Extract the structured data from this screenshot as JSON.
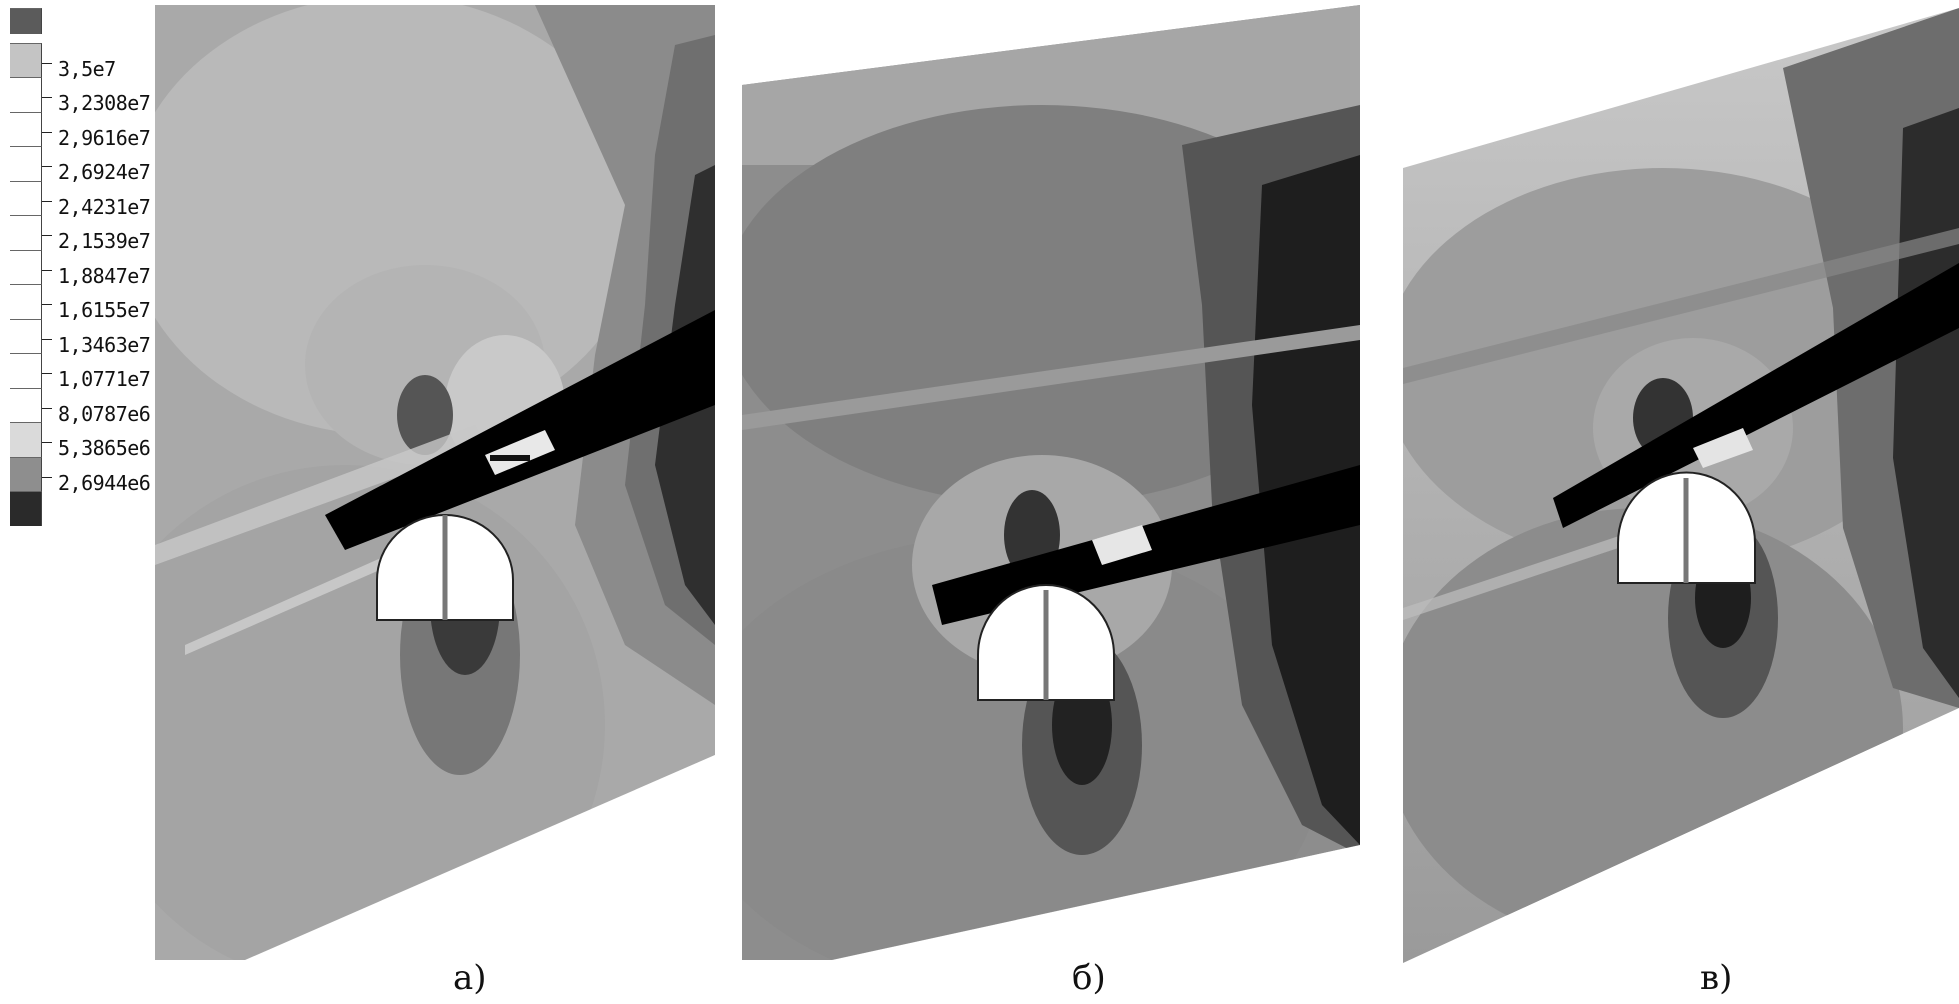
{
  "legend": {
    "entries": [
      {
        "label": "",
        "color": "#5b5b5b"
      },
      {
        "label": "3,5e7",
        "color": "#c4c4c4"
      },
      {
        "label": "3,2308e7",
        "color": "#ffffff"
      },
      {
        "label": "2,9616e7",
        "color": "#ffffff"
      },
      {
        "label": "2,6924e7",
        "color": "#ffffff"
      },
      {
        "label": "2,4231e7",
        "color": "#ffffff"
      },
      {
        "label": "2,1539e7",
        "color": "#ffffff"
      },
      {
        "label": "1,8847e7",
        "color": "#ffffff"
      },
      {
        "label": "1,6155e7",
        "color": "#ffffff"
      },
      {
        "label": "1,3463e7",
        "color": "#ffffff"
      },
      {
        "label": "1,0771e7",
        "color": "#ffffff"
      },
      {
        "label": "8,0787e6",
        "color": "#ffffff"
      },
      {
        "label": "5,3865e6",
        "color": "#dadada"
      },
      {
        "label": "2,6944e6",
        "color": "#8e8e8e"
      },
      {
        "label": "",
        "color": "#2a2a2a"
      }
    ]
  },
  "panels": [
    {
      "caption": "а)"
    },
    {
      "caption": "б)"
    },
    {
      "caption": "в)"
    }
  ]
}
